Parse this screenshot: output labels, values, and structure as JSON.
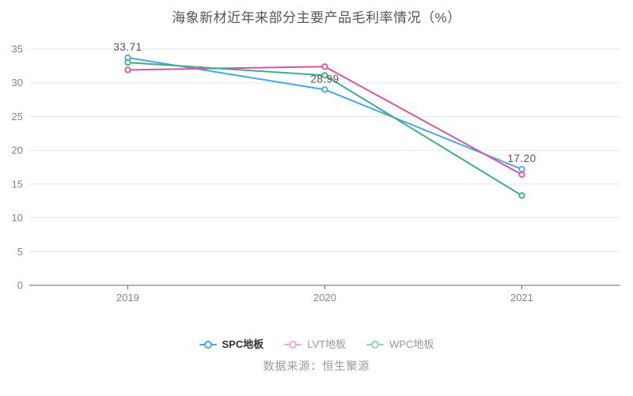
{
  "title": "海象新材近年来部分主要产品毛利率情况（%）",
  "source_note": "数据来源：恒生聚源",
  "chart_data": {
    "type": "line",
    "categories": [
      "2019",
      "2020",
      "2021"
    ],
    "series": [
      {
        "name": "SPC地板",
        "values": [
          33.71,
          28.99,
          17.2
        ],
        "point_labels": [
          "33.71",
          "28.99",
          "17.20"
        ],
        "color": "#47A7E6",
        "legend_marker_color": "#47A7E6",
        "legend_text_color": "#333333",
        "legend_text_bold": true
      },
      {
        "name": "LVT地板",
        "values": [
          31.9,
          32.4,
          16.4
        ],
        "point_labels": [],
        "color": "#D6569E",
        "legend_marker_color": "#F2A8CF",
        "legend_text_color": "#999999",
        "legend_text_bold": false
      },
      {
        "name": "WPC地板",
        "values": [
          33.0,
          31.1,
          13.3
        ],
        "point_labels": [],
        "color": "#41AB88",
        "legend_marker_color": "#8FD3BD",
        "legend_text_color": "#999999",
        "legend_text_bold": false
      }
    ],
    "xlabel": "",
    "ylabel": "",
    "ylim": [
      0,
      35
    ],
    "yticks": [
      0,
      5,
      10,
      15,
      20,
      25,
      30,
      35
    ],
    "grid": true,
    "legend_position": "bottom"
  },
  "style_colors": {
    "background": "#FFFFFF",
    "grid_line": "#E2E7F1",
    "axis_line": "#61656C",
    "axis_label": "#7F848E",
    "point_label": "#555555",
    "title": "#555555",
    "source": "#999999"
  }
}
